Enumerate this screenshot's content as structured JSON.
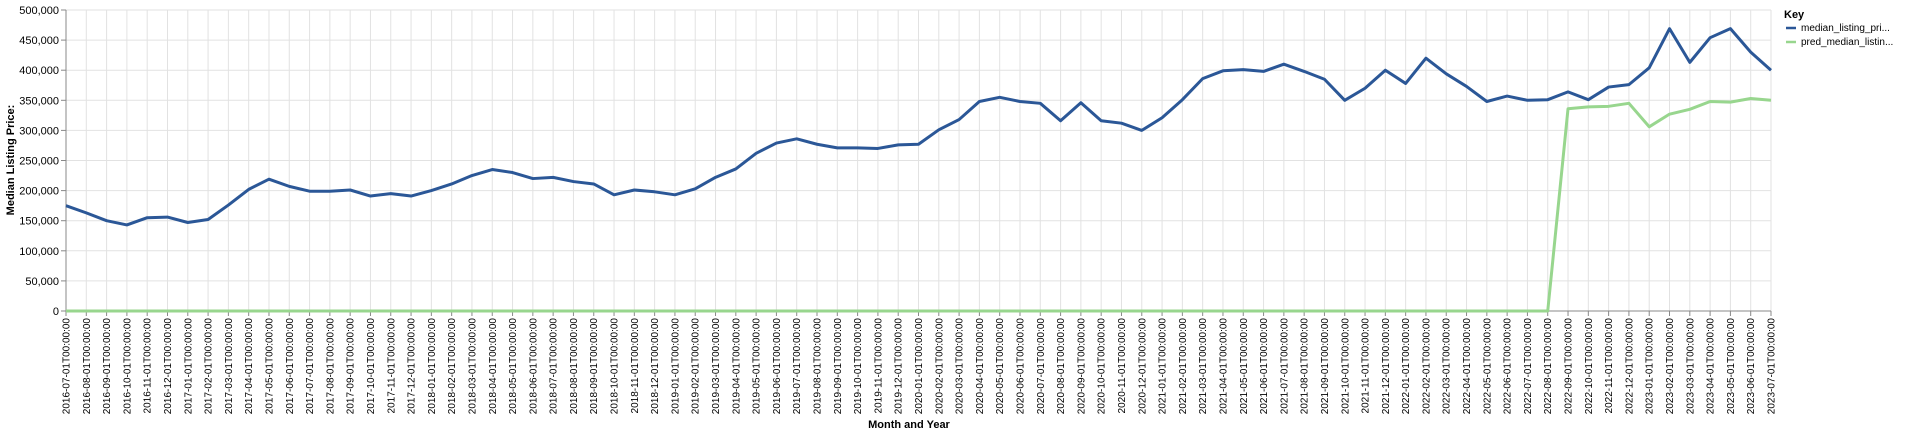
{
  "chart_data": {
    "type": "line",
    "xlabel": "Month and Year",
    "ylabel": "Median Listing Price:",
    "ylim": [
      0,
      500000
    ],
    "yticks": [
      "0",
      "50,000",
      "100,000",
      "150,000",
      "200,000",
      "250,000",
      "300,000",
      "350,000",
      "400,000",
      "450,000",
      "500,000"
    ],
    "grid": true,
    "legend_position": "top-right",
    "legend_title": "Key",
    "x": [
      "2016-07-01T00:00:00",
      "2016-08-01T00:00:00",
      "2016-09-01T00:00:00",
      "2016-10-01T00:00:00",
      "2016-11-01T00:00:00",
      "2016-12-01T00:00:00",
      "2017-01-01T00:00:00",
      "2017-02-01T00:00:00",
      "2017-03-01T00:00:00",
      "2017-04-01T00:00:00",
      "2017-05-01T00:00:00",
      "2017-06-01T00:00:00",
      "2017-07-01T00:00:00",
      "2017-08-01T00:00:00",
      "2017-09-01T00:00:00",
      "2017-10-01T00:00:00",
      "2017-11-01T00:00:00",
      "2017-12-01T00:00:00",
      "2018-01-01T00:00:00",
      "2018-02-01T00:00:00",
      "2018-03-01T00:00:00",
      "2018-04-01T00:00:00",
      "2018-05-01T00:00:00",
      "2018-06-01T00:00:00",
      "2018-07-01T00:00:00",
      "2018-08-01T00:00:00",
      "2018-09-01T00:00:00",
      "2018-10-01T00:00:00",
      "2018-11-01T00:00:00",
      "2018-12-01T00:00:00",
      "2019-01-01T00:00:00",
      "2019-02-01T00:00:00",
      "2019-03-01T00:00:00",
      "2019-04-01T00:00:00",
      "2019-05-01T00:00:00",
      "2019-06-01T00:00:00",
      "2019-07-01T00:00:00",
      "2019-08-01T00:00:00",
      "2019-09-01T00:00:00",
      "2019-10-01T00:00:00",
      "2019-11-01T00:00:00",
      "2019-12-01T00:00:00",
      "2020-01-01T00:00:00",
      "2020-02-01T00:00:00",
      "2020-03-01T00:00:00",
      "2020-04-01T00:00:00",
      "2020-05-01T00:00:00",
      "2020-06-01T00:00:00",
      "2020-07-01T00:00:00",
      "2020-08-01T00:00:00",
      "2020-09-01T00:00:00",
      "2020-10-01T00:00:00",
      "2020-11-01T00:00:00",
      "2020-12-01T00:00:00",
      "2021-01-01T00:00:00",
      "2021-02-01T00:00:00",
      "2021-03-01T00:00:00",
      "2021-04-01T00:00:00",
      "2021-05-01T00:00:00",
      "2021-06-01T00:00:00",
      "2021-07-01T00:00:00",
      "2021-08-01T00:00:00",
      "2021-09-01T00:00:00",
      "2021-10-01T00:00:00",
      "2021-11-01T00:00:00",
      "2021-12-01T00:00:00",
      "2022-01-01T00:00:00",
      "2022-02-01T00:00:00",
      "2022-03-01T00:00:00",
      "2022-04-01T00:00:00",
      "2022-05-01T00:00:00",
      "2022-06-01T00:00:00",
      "2022-07-01T00:00:00",
      "2022-08-01T00:00:00",
      "2022-09-01T00:00:00",
      "2022-10-01T00:00:00",
      "2022-11-01T00:00:00",
      "2022-12-01T00:00:00",
      "2023-01-01T00:00:00",
      "2023-02-01T00:00:00",
      "2023-03-01T00:00:00",
      "2023-04-01T00:00:00",
      "2023-05-01T00:00:00",
      "2023-06-01T00:00:00",
      "2023-07-01T00:00:00"
    ],
    "series": [
      {
        "name": "median_listing_pri...",
        "color": "#2b5797",
        "values": [
          175000,
          163000,
          150000,
          143000,
          155000,
          156000,
          147000,
          152000,
          176000,
          202000,
          219000,
          207000,
          199000,
          199000,
          201000,
          191000,
          195000,
          191000,
          200000,
          211000,
          225000,
          235000,
          230000,
          220000,
          222000,
          215000,
          211000,
          193000,
          201000,
          198000,
          193000,
          203000,
          222000,
          236000,
          262000,
          279000,
          286000,
          277000,
          271000,
          271000,
          270000,
          276000,
          277000,
          301000,
          318000,
          348000,
          355000,
          348000,
          345000,
          316000,
          346000,
          316000,
          312000,
          300000,
          321000,
          351000,
          386000,
          399000,
          401000,
          398000,
          410000,
          398000,
          385000,
          350000,
          370000,
          400000,
          378000,
          420000,
          394000,
          373000,
          348000,
          357000,
          350000,
          351000,
          364000,
          351000,
          372000,
          376000,
          404000,
          469000,
          413000,
          454000,
          469000,
          430000,
          400000
        ]
      },
      {
        "name": "pred_median_listin...",
        "color": "#98d68e",
        "values": [
          0,
          0,
          0,
          0,
          0,
          0,
          0,
          0,
          0,
          0,
          0,
          0,
          0,
          0,
          0,
          0,
          0,
          0,
          0,
          0,
          0,
          0,
          0,
          0,
          0,
          0,
          0,
          0,
          0,
          0,
          0,
          0,
          0,
          0,
          0,
          0,
          0,
          0,
          0,
          0,
          0,
          0,
          0,
          0,
          0,
          0,
          0,
          0,
          0,
          0,
          0,
          0,
          0,
          0,
          0,
          0,
          0,
          0,
          0,
          0,
          0,
          0,
          0,
          0,
          0,
          0,
          0,
          0,
          0,
          0,
          0,
          0,
          0,
          0,
          336000,
          339000,
          340000,
          345000,
          306000,
          327000,
          335000,
          348000,
          347000,
          353000,
          350000
        ]
      }
    ]
  }
}
